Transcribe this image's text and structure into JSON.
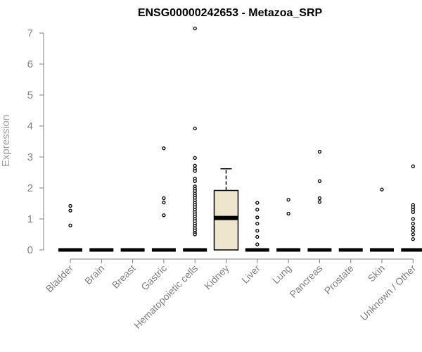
{
  "chart_data": {
    "type": "box",
    "title": "ENSG00000242653 - Metazoa_SRP",
    "ylabel": "Expression",
    "xlabel": "",
    "ylim": [
      0,
      7.2
    ],
    "yticks": [
      0,
      1,
      2,
      3,
      4,
      5,
      6,
      7
    ],
    "grid": false,
    "colors": {
      "box_fill": "#ede6cd",
      "stroke": "#000000",
      "text": "#808080"
    },
    "categories": [
      "Bladder",
      "Brain",
      "Breast",
      "Gastric",
      "Hematopoietic cells",
      "Kidney",
      "Liver",
      "Lung",
      "Pancreas",
      "Prostate",
      "Skin",
      "Unknown / Other"
    ],
    "boxes": [
      {
        "category": "Bladder",
        "q1": 0,
        "median": 0,
        "q3": 0,
        "whisker_low": 0,
        "whisker_high": 0,
        "outliers": [
          1.42,
          1.27,
          0.79
        ]
      },
      {
        "category": "Brain",
        "q1": 0,
        "median": 0,
        "q3": 0,
        "whisker_low": 0,
        "whisker_high": 0,
        "outliers": []
      },
      {
        "category": "Breast",
        "q1": 0,
        "median": 0,
        "q3": 0,
        "whisker_low": 0,
        "whisker_high": 0,
        "outliers": []
      },
      {
        "category": "Gastric",
        "q1": 0,
        "median": 0,
        "q3": 0,
        "whisker_low": 0,
        "whisker_high": 0,
        "outliers": [
          3.28,
          1.67,
          1.53,
          1.12
        ]
      },
      {
        "category": "Hematopoietic cells",
        "q1": 0,
        "median": 0,
        "q3": 0,
        "whisker_low": 0,
        "whisker_high": 0,
        "outliers": [
          7.15,
          3.92,
          2.97,
          2.72,
          2.62,
          2.55,
          2.3,
          2.22,
          2.05,
          1.97,
          1.9,
          1.82,
          1.75,
          1.68,
          1.6,
          1.52,
          1.45,
          1.38,
          1.3,
          1.22,
          1.15,
          1.08,
          1.0,
          0.93,
          0.85,
          0.78,
          0.7,
          0.63,
          0.55,
          0.5
        ]
      },
      {
        "category": "Kidney",
        "q1": 0,
        "median": 1.03,
        "q3": 1.92,
        "whisker_low": 0,
        "whisker_high": 2.62,
        "outliers": []
      },
      {
        "category": "Liver",
        "q1": 0,
        "median": 0,
        "q3": 0,
        "whisker_low": 0,
        "whisker_high": 0,
        "outliers": [
          1.52,
          1.3,
          1.05,
          0.85,
          0.62,
          0.42,
          0.18
        ]
      },
      {
        "category": "Lung",
        "q1": 0,
        "median": 0,
        "q3": 0,
        "whisker_low": 0,
        "whisker_high": 0,
        "outliers": [
          1.62,
          1.17
        ]
      },
      {
        "category": "Pancreas",
        "q1": 0,
        "median": 0,
        "q3": 0,
        "whisker_low": 0,
        "whisker_high": 0,
        "outliers": [
          3.17,
          2.22,
          1.67,
          1.55
        ]
      },
      {
        "category": "Prostate",
        "q1": 0,
        "median": 0,
        "q3": 0,
        "whisker_low": 0,
        "whisker_high": 0,
        "outliers": []
      },
      {
        "category": "Skin",
        "q1": 0,
        "median": 0,
        "q3": 0,
        "whisker_low": 0,
        "whisker_high": 0,
        "outliers": [
          1.95
        ]
      },
      {
        "category": "Unknown / Other",
        "q1": 0,
        "median": 0,
        "q3": 0,
        "whisker_low": 0,
        "whisker_high": 0,
        "outliers": [
          2.7,
          1.45,
          1.38,
          1.3,
          1.22,
          1.0,
          0.85,
          0.72,
          0.62,
          0.5,
          0.35
        ]
      }
    ]
  }
}
